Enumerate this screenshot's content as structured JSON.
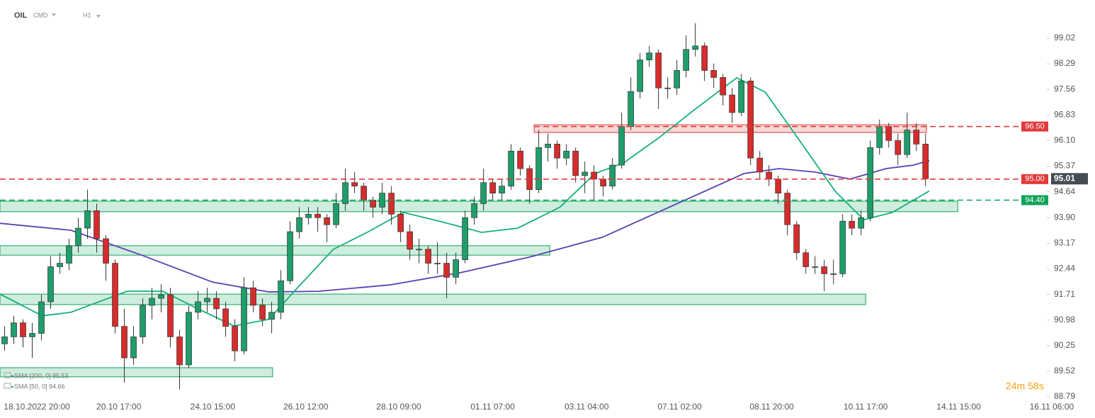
{
  "symbol": "OIL",
  "asset_class": "CMD",
  "interval": "H1",
  "timer": "24m 58s",
  "chart_data": {
    "type": "candlestick",
    "xlim": [
      -0.5,
      118.4
    ],
    "ylim": [
      88.69,
      100.11
    ],
    "xticks": [
      {
        "value": 3.5,
        "label": "18.10.2022 20:00"
      },
      {
        "value": 12.4,
        "label": "20.10 17:00"
      },
      {
        "value": 22.6,
        "label": "24.10 15:00"
      },
      {
        "value": 32.7,
        "label": "26.10 12:00"
      },
      {
        "value": 42.8,
        "label": "28.10 09:00"
      },
      {
        "value": 53,
        "label": "01.11 07:00"
      },
      {
        "value": 63.2,
        "label": "03.11 04:00"
      },
      {
        "value": 73.3,
        "label": "07.11 02:00"
      },
      {
        "value": 83.3,
        "label": "08.11 20:00"
      },
      {
        "value": 93.5,
        "label": "10.11 17:00"
      },
      {
        "value": 103.6,
        "label": "14.11 15:00"
      },
      {
        "value": 113.7,
        "label": "16.11 06:00"
      }
    ],
    "yticks": [
      99.02,
      98.29,
      97.56,
      96.83,
      {
        "value": 96.1,
        "label": "96.10"
      },
      95.37,
      94.64,
      {
        "value": 93.9,
        "label": "93.90"
      },
      93.17,
      92.44,
      91.71,
      90.98,
      90.25,
      89.52,
      88.79
    ],
    "up_color": "#1f9d6b",
    "down_color": "#d62c2c",
    "candles": [
      [
        90.3,
        90.8,
        90.1,
        90.5
      ],
      [
        90.5,
        91.1,
        90.3,
        90.9
      ],
      [
        90.9,
        91.0,
        90.2,
        90.5
      ],
      [
        90.5,
        90.9,
        89.9,
        90.6
      ],
      [
        90.6,
        91.7,
        90.4,
        91.5
      ],
      [
        91.5,
        92.8,
        91.3,
        92.5
      ],
      [
        92.5,
        92.9,
        92.3,
        92.6
      ],
      [
        92.6,
        93.3,
        92.4,
        93.1
      ],
      [
        93.1,
        93.9,
        92.9,
        93.6
      ],
      [
        93.6,
        94.7,
        93.3,
        94.1
      ],
      [
        94.1,
        94.3,
        92.9,
        93.3
      ],
      [
        93.3,
        93.4,
        92.1,
        92.6
      ],
      [
        92.6,
        92.7,
        90.6,
        90.8
      ],
      [
        90.8,
        91.3,
        89.2,
        89.9
      ],
      [
        89.9,
        90.8,
        89.7,
        90.5
      ],
      [
        90.5,
        91.6,
        90.3,
        91.4
      ],
      [
        91.4,
        91.9,
        91.0,
        91.6
      ],
      [
        91.6,
        92.0,
        91.2,
        91.7
      ],
      [
        91.7,
        91.9,
        90.2,
        90.5
      ],
      [
        90.5,
        90.7,
        89.0,
        89.7
      ],
      [
        89.7,
        91.4,
        89.6,
        91.2
      ],
      [
        91.2,
        91.8,
        91.0,
        91.5
      ],
      [
        91.5,
        91.9,
        91.2,
        91.6
      ],
      [
        91.6,
        91.8,
        91.0,
        91.3
      ],
      [
        91.3,
        91.5,
        90.5,
        90.8
      ],
      [
        90.8,
        91.0,
        89.8,
        90.1
      ],
      [
        90.1,
        92.2,
        90.0,
        91.9
      ],
      [
        91.9,
        92.1,
        91.2,
        91.4
      ],
      [
        91.4,
        91.6,
        90.8,
        91.0
      ],
      [
        91.0,
        91.5,
        90.6,
        91.2
      ],
      [
        91.2,
        92.4,
        91.0,
        92.1
      ],
      [
        92.1,
        93.8,
        92.0,
        93.5
      ],
      [
        93.5,
        94.2,
        93.3,
        93.9
      ],
      [
        93.9,
        94.2,
        93.7,
        94.0
      ],
      [
        94.0,
        94.2,
        93.5,
        93.9
      ],
      [
        93.9,
        94.0,
        93.2,
        93.7
      ],
      [
        93.7,
        94.6,
        93.6,
        94.3
      ],
      [
        94.3,
        95.3,
        94.1,
        94.9
      ],
      [
        94.9,
        95.2,
        94.6,
        94.8
      ],
      [
        94.8,
        94.9,
        94.1,
        94.4
      ],
      [
        94.4,
        94.5,
        93.9,
        94.2
      ],
      [
        94.2,
        94.9,
        94.0,
        94.6
      ],
      [
        94.6,
        94.8,
        93.7,
        94.0
      ],
      [
        94.0,
        94.1,
        93.2,
        93.5
      ],
      [
        93.5,
        93.7,
        92.7,
        93.0
      ],
      [
        93.0,
        93.3,
        92.6,
        93.0
      ],
      [
        93.0,
        93.1,
        92.3,
        92.6
      ],
      [
        92.6,
        93.2,
        92.3,
        92.6
      ],
      [
        92.6,
        92.9,
        91.6,
        92.2
      ],
      [
        92.2,
        92.9,
        92.0,
        92.7
      ],
      [
        92.7,
        94.1,
        92.6,
        93.9
      ],
      [
        93.9,
        94.5,
        93.7,
        94.3
      ],
      [
        94.3,
        95.3,
        94.1,
        94.9
      ],
      [
        94.9,
        95.0,
        94.4,
        94.6
      ],
      [
        94.6,
        95.0,
        94.4,
        94.8
      ],
      [
        94.8,
        96.0,
        94.7,
        95.8
      ],
      [
        95.8,
        95.9,
        95.1,
        95.3
      ],
      [
        95.3,
        95.4,
        94.3,
        94.7
      ],
      [
        94.7,
        96.4,
        94.6,
        95.9
      ],
      [
        95.9,
        96.3,
        95.5,
        96.0
      ],
      [
        96.0,
        96.1,
        95.3,
        95.6
      ],
      [
        95.6,
        96.0,
        95.4,
        95.8
      ],
      [
        95.8,
        95.9,
        94.9,
        95.1
      ],
      [
        95.1,
        95.5,
        94.6,
        95.2
      ],
      [
        95.2,
        95.4,
        94.4,
        95.0
      ],
      [
        95.0,
        95.1,
        94.5,
        94.8
      ],
      [
        94.8,
        95.6,
        94.7,
        95.4
      ],
      [
        95.4,
        96.9,
        95.3,
        96.5
      ],
      [
        96.5,
        97.9,
        96.4,
        97.5
      ],
      [
        97.5,
        98.6,
        97.3,
        98.4
      ],
      [
        98.4,
        98.8,
        98.2,
        98.6
      ],
      [
        98.6,
        98.7,
        97.0,
        97.6
      ],
      [
        97.6,
        97.9,
        97.3,
        97.6
      ],
      [
        97.6,
        98.4,
        97.4,
        98.1
      ],
      [
        98.1,
        99.1,
        97.9,
        98.7
      ],
      [
        98.7,
        99.45,
        98.5,
        98.8
      ],
      [
        98.8,
        98.9,
        97.8,
        98.1
      ],
      [
        98.1,
        98.3,
        97.6,
        97.9
      ],
      [
        97.9,
        98.0,
        97.1,
        97.4
      ],
      [
        97.4,
        97.6,
        96.6,
        96.9
      ],
      [
        96.9,
        98.0,
        96.8,
        97.8
      ],
      [
        97.8,
        97.9,
        95.4,
        95.6
      ],
      [
        95.6,
        95.8,
        95.0,
        95.2
      ],
      [
        95.2,
        95.4,
        94.8,
        95.0
      ],
      [
        95.0,
        95.1,
        94.3,
        94.6
      ],
      [
        94.6,
        94.7,
        93.4,
        93.7
      ],
      [
        93.7,
        93.8,
        92.7,
        92.9
      ],
      [
        92.9,
        93.0,
        92.3,
        92.5
      ],
      [
        92.5,
        92.8,
        92.3,
        92.5
      ],
      [
        92.5,
        92.7,
        91.8,
        92.3
      ],
      [
        92.3,
        92.7,
        92.0,
        92.3
      ],
      [
        92.3,
        94.0,
        92.2,
        93.8
      ],
      [
        93.8,
        94.0,
        93.4,
        93.6
      ],
      [
        93.6,
        94.1,
        93.4,
        93.9
      ],
      [
        93.9,
        96.1,
        93.8,
        95.9
      ],
      [
        95.9,
        96.7,
        95.7,
        96.5
      ],
      [
        96.5,
        96.6,
        95.9,
        96.1
      ],
      [
        96.1,
        96.3,
        95.4,
        95.7
      ],
      [
        95.7,
        96.9,
        95.6,
        96.4
      ],
      [
        96.4,
        96.6,
        95.8,
        96.0
      ],
      [
        96.0,
        96.3,
        94.8,
        95.01
      ]
    ],
    "series": [
      {
        "name": "SMA [200, 0] 95.53",
        "color": "#5b3fb5",
        "x": [
          -0.5,
          7.2,
          14.9,
          22.6,
          28.7,
          34.1,
          41.8,
          49.5,
          57.2,
          64.9,
          72.6,
          80.3,
          84.1,
          88,
          91.8,
          95.7,
          98.7,
          100.4
        ],
        "values": [
          93.74,
          93.54,
          92.83,
          92.06,
          91.78,
          91.8,
          91.98,
          92.33,
          92.79,
          93.34,
          94.25,
          95.16,
          95.3,
          95.2,
          95.0,
          95.3,
          95.4,
          95.53
        ]
      },
      {
        "name": "SMA [50, 0] 94.66",
        "color": "#14b07a",
        "x": [
          -0.5,
          4.1,
          7.2,
          13.3,
          17.2,
          21,
          24.9,
          28.7,
          31.8,
          35.7,
          39.5,
          43.3,
          47.2,
          51.8,
          55.7,
          60.3,
          64.1,
          67.2,
          71,
          74.9,
          79.5,
          82.6,
          86.4,
          90.2,
          93.3,
          96.4,
          98.7,
          100.4
        ],
        "values": [
          91.72,
          91.1,
          91.2,
          91.8,
          91.8,
          91.3,
          90.81,
          91.0,
          91.9,
          93.0,
          93.5,
          94.05,
          93.8,
          93.48,
          93.6,
          94.2,
          95.16,
          95.46,
          96.17,
          96.98,
          97.89,
          97.48,
          96.07,
          94.65,
          93.84,
          94.05,
          94.4,
          94.66
        ]
      }
    ],
    "zones": [
      {
        "x": [
          57.5,
          100.1
        ],
        "y": [
          96.33,
          96.55
        ],
        "color": "#e03a3a"
      },
      {
        "x": [
          -0.5,
          103.5
        ],
        "y": [
          94.07,
          94.37
        ],
        "color": "#10a35a"
      },
      {
        "x": [
          -0.5,
          59.2
        ],
        "y": [
          92.83,
          93.1
        ],
        "color": "#10a35a"
      },
      {
        "x": [
          -0.5,
          93.5
        ],
        "y": [
          91.42,
          91.72
        ],
        "color": "#10a35a"
      },
      {
        "x": [
          -0.5,
          29.1
        ],
        "y": [
          89.36,
          89.62
        ],
        "color": "#10a35a"
      }
    ],
    "levels": [
      {
        "value": 96.5,
        "label": "96.50",
        "color": "#e03a3a",
        "xstart": 57.5
      },
      {
        "value": 95,
        "label": "95.00",
        "color": "#e03a3a",
        "xstart": -0.5
      },
      {
        "value": 94.4,
        "label": "94.40",
        "color": "#10a35a",
        "xstart": -0.5
      }
    ],
    "current": 95.01,
    "current_color": "#454c55"
  }
}
